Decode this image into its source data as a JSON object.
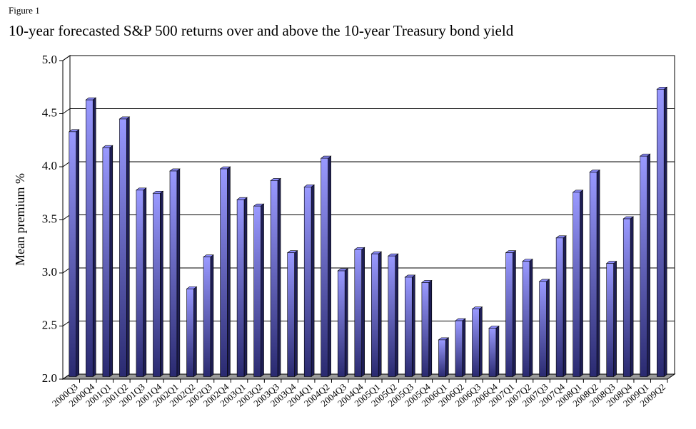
{
  "chart_data": {
    "type": "bar3d",
    "figure_label": "Figure 1",
    "title": "10-year forecasted S&P 500 returns over and above the 10-year Treasury bond yield",
    "y_label": "Mean premium  %",
    "categories": [
      "2000Q3",
      "2000Q4",
      "2001Q1",
      "2001Q2",
      "2001Q3",
      "2001Q4",
      "2002Q1",
      "2002Q2",
      "2002Q3",
      "2002Q4",
      "2003Q1",
      "2003Q2",
      "2003Q3",
      "2003Q4",
      "2004Q1",
      "2004Q2",
      "2004Q3",
      "2004Q4",
      "2005Q1",
      "2005Q2",
      "2005Q3",
      "2005Q4",
      "2006Q1",
      "2006Q2",
      "2006Q3",
      "2006Q4",
      "2007Q1",
      "2007Q2",
      "2007Q3",
      "2007Q4",
      "2008Q1",
      "2008Q2",
      "2008Q3",
      "2008Q4",
      "2009Q1",
      "2009Q2"
    ],
    "values": [
      4.35,
      4.65,
      4.2,
      4.47,
      3.8,
      3.77,
      3.98,
      2.87,
      3.17,
      4.0,
      3.71,
      3.65,
      3.89,
      3.21,
      3.83,
      4.1,
      3.04,
      3.24,
      3.2,
      3.18,
      2.98,
      2.93,
      2.39,
      2.57,
      2.68,
      2.5,
      3.21,
      3.13,
      2.94,
      3.35,
      3.78,
      3.97,
      3.11,
      3.53,
      4.12,
      4.75
    ],
    "color": "#8c8cff",
    "ylim": [
      2,
      5
    ],
    "yticks": [
      {
        "value": 2,
        "label": "2.0"
      },
      2.5,
      {
        "value": 3,
        "label": "3.0"
      },
      3.5,
      {
        "value": 4,
        "label": "4.0"
      },
      4.5,
      {
        "value": 5,
        "label": "5.0"
      }
    ],
    "grid": true
  }
}
